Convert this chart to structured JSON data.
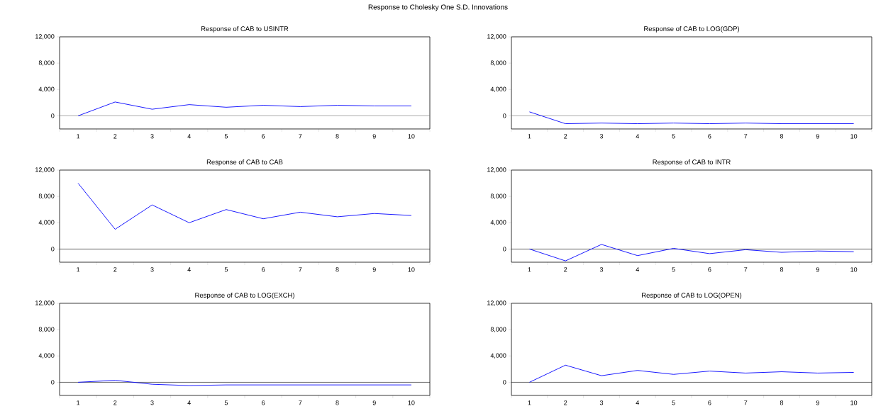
{
  "chart_data": [
    {
      "type": "line",
      "title": "Response to Cholesky One S.D. Innovations",
      "subtitle": "Response of CAB to USINTR",
      "categories": [
        "1",
        "2",
        "3",
        "4",
        "5",
        "6",
        "7",
        "8",
        "9",
        "10"
      ],
      "values": [
        0,
        2100,
        1000,
        1700,
        1300,
        1600,
        1400,
        1600,
        1500,
        1500
      ],
      "color": "#0000ff",
      "ylim": [
        -2000,
        12000
      ],
      "yticks": [
        {
          "value": 0,
          "label": "0"
        },
        {
          "value": 4000,
          "label": "4,000"
        },
        {
          "value": 8000,
          "label": "8,000"
        },
        {
          "value": 12000,
          "label": "12,000"
        }
      ],
      "ref_lines": [
        {
          "axis": "y",
          "value": 0,
          "color": "#707070"
        }
      ]
    },
    {
      "type": "line",
      "title": "Response of CAB to LOG(GDP)",
      "categories": [
        "1",
        "2",
        "3",
        "4",
        "5",
        "6",
        "7",
        "8",
        "9",
        "10"
      ],
      "values": [
        600,
        -1200,
        -1100,
        -1200,
        -1100,
        -1200,
        -1100,
        -1200,
        -1200,
        -1200
      ],
      "color": "#0000ff",
      "ylim": [
        -2000,
        12000
      ],
      "yticks": [
        {
          "value": 0,
          "label": "0"
        },
        {
          "value": 4000,
          "label": "4,000"
        },
        {
          "value": 8000,
          "label": "8,000"
        },
        {
          "value": 12000,
          "label": "12,000"
        }
      ],
      "ref_lines": [
        {
          "axis": "y",
          "value": 0,
          "color": "#707070"
        }
      ]
    },
    {
      "type": "line",
      "title": "Response of CAB to CAB",
      "categories": [
        "1",
        "2",
        "3",
        "4",
        "5",
        "6",
        "7",
        "8",
        "9",
        "10"
      ],
      "values": [
        10000,
        3000,
        6700,
        4000,
        6000,
        4600,
        5600,
        4900,
        5400,
        5100
      ],
      "color": "#0000ff",
      "ylim": [
        -2000,
        12000
      ],
      "yticks": [
        {
          "value": 0,
          "label": "0"
        },
        {
          "value": 4000,
          "label": "4,000"
        },
        {
          "value": 8000,
          "label": "8,000"
        },
        {
          "value": 12000,
          "label": "12,000"
        }
      ],
      "ref_lines": [
        {
          "axis": "y",
          "value": 0,
          "color": "#000000"
        }
      ]
    },
    {
      "type": "line",
      "title": "Response of CAB to INTR",
      "categories": [
        "1",
        "2",
        "3",
        "4",
        "5",
        "6",
        "7",
        "8",
        "9",
        "10"
      ],
      "values": [
        0,
        -1800,
        700,
        -1000,
        100,
        -700,
        -100,
        -500,
        -300,
        -400
      ],
      "color": "#0000ff",
      "ylim": [
        -2000,
        12000
      ],
      "yticks": [
        {
          "value": 0,
          "label": "0"
        },
        {
          "value": 4000,
          "label": "4,000"
        },
        {
          "value": 8000,
          "label": "8,000"
        },
        {
          "value": 12000,
          "label": "12,000"
        }
      ],
      "ref_lines": [
        {
          "axis": "y",
          "value": 0,
          "color": "#000000"
        }
      ]
    },
    {
      "type": "line",
      "title": "Response of CAB to LOG(EXCH)",
      "categories": [
        "1",
        "2",
        "3",
        "4",
        "5",
        "6",
        "7",
        "8",
        "9",
        "10"
      ],
      "values": [
        0,
        300,
        -300,
        -500,
        -400,
        -400,
        -400,
        -400,
        -400,
        -400
      ],
      "color": "#0000ff",
      "ylim": [
        -2000,
        12000
      ],
      "yticks": [
        {
          "value": 0,
          "label": "0"
        },
        {
          "value": 4000,
          "label": "4,000"
        },
        {
          "value": 8000,
          "label": "8,000"
        },
        {
          "value": 12000,
          "label": "12,000"
        }
      ],
      "ref_lines": [
        {
          "axis": "y",
          "value": 0,
          "color": "#000000"
        }
      ]
    },
    {
      "type": "line",
      "title": "Response of CAB to LOG(OPEN)",
      "categories": [
        "1",
        "2",
        "3",
        "4",
        "5",
        "6",
        "7",
        "8",
        "9",
        "10"
      ],
      "values": [
        0,
        2600,
        1000,
        1800,
        1200,
        1700,
        1400,
        1600,
        1400,
        1500
      ],
      "color": "#0000ff",
      "ylim": [
        -2000,
        12000
      ],
      "yticks": [
        {
          "value": 0,
          "label": "0"
        },
        {
          "value": 4000,
          "label": "4,000"
        },
        {
          "value": 8000,
          "label": "8,000"
        },
        {
          "value": 12000,
          "label": "12,000"
        }
      ],
      "ref_lines": [
        {
          "axis": "y",
          "value": 0,
          "color": "#000000"
        }
      ]
    }
  ]
}
